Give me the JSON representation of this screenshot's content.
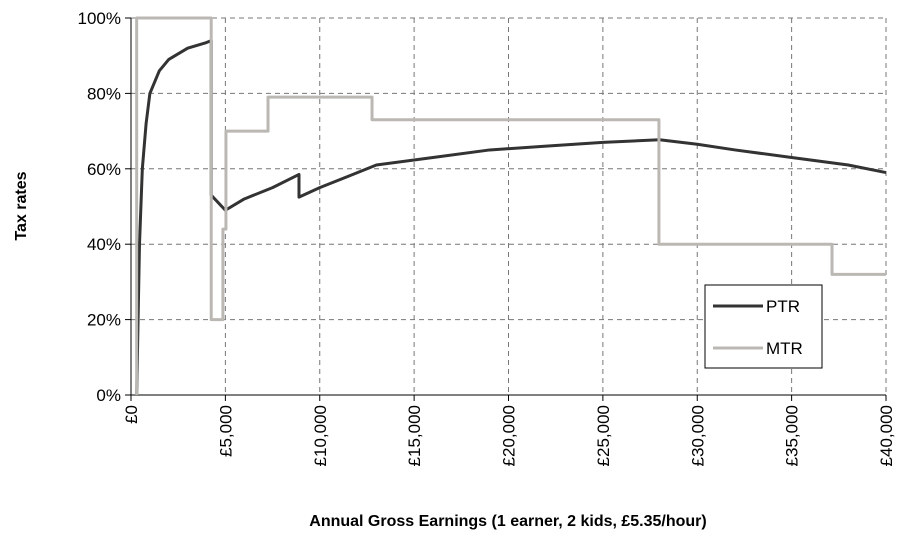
{
  "chart_data": {
    "type": "line",
    "xlabel": "Annual Gross Earnings (1 earner, 2 kids, £5.35/hour)",
    "ylabel": "Tax rates",
    "xlim": [
      0,
      40000
    ],
    "ylim": [
      0,
      100
    ],
    "xticks": [
      {
        "value": 0,
        "label": "£0"
      },
      {
        "value": 5000,
        "label": "£5,000"
      },
      {
        "value": 10000,
        "label": "£10,000"
      },
      {
        "value": 15000,
        "label": "£15,000"
      },
      {
        "value": 20000,
        "label": "£20,000"
      },
      {
        "value": 25000,
        "label": "£25,000"
      },
      {
        "value": 30000,
        "label": "£30,000"
      },
      {
        "value": 35000,
        "label": "£35,000"
      },
      {
        "value": 40000,
        "label": "£40,000"
      }
    ],
    "yticks": [
      {
        "value": 0,
        "label": "0%"
      },
      {
        "value": 20,
        "label": "20%"
      },
      {
        "value": 40,
        "label": "40%"
      },
      {
        "value": 60,
        "label": "60%"
      },
      {
        "value": 80,
        "label": "80%"
      },
      {
        "value": 100,
        "label": "100%"
      }
    ],
    "grid": true,
    "legend": "lower right",
    "series": [
      {
        "name": "PTR",
        "color": "#333333",
        "x": [
          300,
          450,
          600,
          800,
          1000,
          1500,
          2000,
          3000,
          4000,
          4250,
          4250,
          5000,
          6000,
          7500,
          8900,
          8900,
          10000,
          11500,
          13000,
          16000,
          19000,
          22000,
          25000,
          28000,
          30000,
          32000,
          35000,
          38000,
          40000
        ],
        "values": [
          0,
          40,
          60,
          72,
          80,
          86,
          89,
          92,
          93.5,
          94,
          53,
          49,
          52,
          55,
          58.5,
          52.5,
          55,
          58,
          61,
          63,
          65,
          66,
          67,
          67.7,
          66.5,
          65,
          63,
          61,
          59
        ]
      },
      {
        "name": "MTR",
        "color": "#bbb8b4",
        "x": [
          300,
          300,
          4250,
          4250,
          4870,
          4870,
          5030,
          5030,
          7260,
          7260,
          12770,
          12770,
          27970,
          27970,
          37140,
          37140,
          40000
        ],
        "values": [
          0,
          100,
          100,
          20,
          20,
          44,
          44,
          70,
          70,
          79,
          79,
          73,
          73,
          40,
          40,
          32,
          32
        ]
      }
    ]
  }
}
